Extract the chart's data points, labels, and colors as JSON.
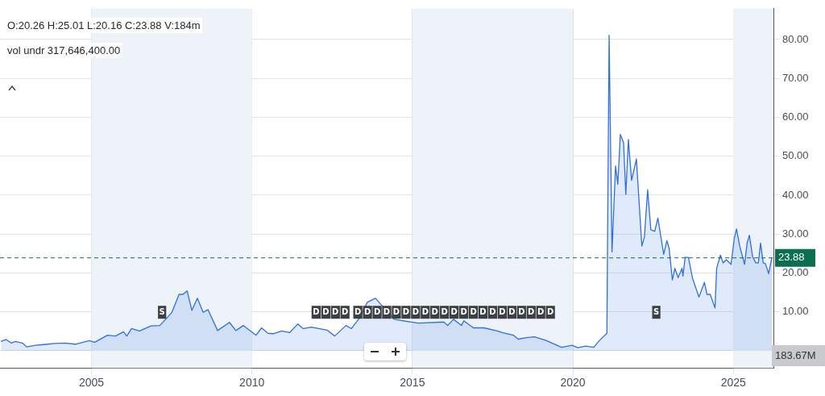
{
  "chart_data": {
    "type": "area",
    "x": [
      2002.18,
      2002.34,
      2002.5,
      2002.63,
      2002.85,
      2002.98,
      2003.25,
      2003.5,
      2003.85,
      2004.18,
      2004.5,
      2004.93,
      2005.1,
      2005.5,
      2005.75,
      2006.0,
      2006.1,
      2006.25,
      2006.5,
      2006.85,
      2007.13,
      2007.25,
      2007.5,
      2007.73,
      2007.85,
      2007.98,
      2008.13,
      2008.3,
      2008.48,
      2008.63,
      2008.93,
      2009.3,
      2009.5,
      2009.73,
      2010.13,
      2010.3,
      2010.5,
      2010.68,
      2010.93,
      2011.18,
      2011.43,
      2011.6,
      2011.85,
      2012.35,
      2012.58,
      2012.93,
      2013.1,
      2013.35,
      2013.6,
      2013.85,
      2014.0,
      2014.43,
      2015.18,
      2015.98,
      2016.1,
      2016.28,
      2016.53,
      2016.6,
      2016.9,
      2017.23,
      2017.65,
      2017.8,
      2018.15,
      2018.3,
      2018.55,
      2018.8,
      2019.15,
      2019.65,
      2019.98,
      2020.15,
      2020.4,
      2020.65,
      2020.8,
      2021.06,
      2021.13,
      2021.22,
      2021.33,
      2021.4,
      2021.48,
      2021.58,
      2021.65,
      2021.73,
      2021.83,
      2021.98,
      2022.15,
      2022.23,
      2022.33,
      2022.43,
      2022.55,
      2022.65,
      2022.83,
      2022.93,
      2023.0,
      2023.1,
      2023.18,
      2023.28,
      2023.4,
      2023.43,
      2023.5,
      2023.6,
      2023.73,
      2023.93,
      2024.1,
      2024.18,
      2024.28,
      2024.43,
      2024.48,
      2024.55,
      2024.6,
      2024.68,
      2024.78,
      2024.93,
      2025.03,
      2025.1,
      2025.2,
      2025.35,
      2025.43,
      2025.5,
      2025.6,
      2025.7,
      2025.78,
      2025.85,
      2025.93,
      2026.0,
      2026.1,
      2026.2
    ],
    "series": [
      {
        "color": "#2f6fe0",
        "values": [
          2.4,
          2.9,
          2.0,
          2.4,
          2.0,
          1.0,
          1.4,
          1.6,
          1.9,
          2.0,
          1.7,
          2.6,
          2.2,
          4.0,
          3.8,
          4.9,
          3.8,
          5.7,
          5.1,
          6.4,
          6.5,
          null,
          9.8,
          14.5,
          14.5,
          15.4,
          10.4,
          13.5,
          9.9,
          10.6,
          5.2,
          7.3,
          5.2,
          6.5,
          4.0,
          5.9,
          4.5,
          4.4,
          5.1,
          4.7,
          6.9,
          5.7,
          6.1,
          5.3,
          3.8,
          6.5,
          5.7,
          8.4,
          12.5,
          13.5,
          12.1,
          8.1,
          7.1,
          7.4,
          6.5,
          8.1,
          6.5,
          7.7,
          5.9,
          5.9,
          5.1,
          4.7,
          4.0,
          3.0,
          3.4,
          3.6,
          2.7,
          0.9,
          1.4,
          0.8,
          1.2,
          0.9,
          2.4,
          4.5,
          81.1,
          25.4,
          47.5,
          42.8,
          55.6,
          53.5,
          40.2,
          54.3,
          43.8,
          49.3,
          26.9,
          29.3,
          41.4,
          31.1,
          30.7,
          34.1,
          24.8,
          28.3,
          26.3,
          18.2,
          21.2,
          18.8,
          21.2,
          19.2,
          24.0,
          24.0,
          18.6,
          13.8,
          17.6,
          14.5,
          14.5,
          11.0,
          21.2,
          23.2,
          24.6,
          22.6,
          23.4,
          22.2,
          28.9,
          31.3,
          26.9,
          22.2,
          27.7,
          29.7,
          24.2,
          22.6,
          22.6,
          27.7,
          22.6,
          22.4,
          19.8,
          23.9
        ]
      }
    ],
    "xlim": [
      2002.15,
      2026.25
    ],
    "xticks": [
      2005,
      2010,
      2015,
      2020,
      2025
    ],
    "ylim": [
      -4.4,
      87.9
    ],
    "yticks": [
      {
        "value": 0,
        "label": null
      },
      {
        "value": 10,
        "label": "10.00"
      },
      {
        "value": 20,
        "label": "20.00"
      },
      {
        "value": 30,
        "label": "30.00"
      },
      {
        "value": 40,
        "label": "40.00"
      },
      {
        "value": 50,
        "label": "50.00"
      },
      {
        "value": 60,
        "label": "60.00"
      },
      {
        "value": 70,
        "label": "70.00"
      },
      {
        "value": 80,
        "label": "80.00"
      }
    ],
    "grid": true,
    "legend": false,
    "ref_lines": [
      {
        "axis": "y",
        "value": 23.88,
        "label": "23.88",
        "color": "#0b6e4f",
        "line_style": "dashed"
      }
    ],
    "bands": [
      {
        "axis": "x",
        "from": 2005,
        "to": 2010,
        "color": "#eef3f9"
      },
      {
        "axis": "x",
        "from": 2015,
        "to": 2020,
        "color": "#eef3f9"
      },
      {
        "axis": "x",
        "from": 2025,
        "to": 2026.25,
        "color": "#eef3f9"
      }
    ],
    "annotations": [
      "O:20.26  H:25.01  L:20.16  C:23.88  V:184m",
      "vol undr  317,646,400.00",
      "183.67M",
      {
        "text": "S",
        "x": 2007.2,
        "y": 9.9
      },
      {
        "text": "S",
        "x": 2022.6,
        "y": 9.9
      },
      {
        "text": "D",
        "x": 2012.0,
        "y": 9.9
      },
      {
        "text": "D",
        "x": 2012.3,
        "y": 9.9
      },
      {
        "text": "D",
        "x": 2012.6,
        "y": 9.9
      },
      {
        "text": "D",
        "x": 2012.9,
        "y": 9.9
      },
      {
        "text": "D",
        "x": 2013.3,
        "y": 9.9
      },
      {
        "text": "D",
        "x": 2013.6,
        "y": 9.9
      },
      {
        "text": "D",
        "x": 2013.9,
        "y": 9.9
      },
      {
        "text": "D",
        "x": 2014.2,
        "y": 9.9
      },
      {
        "text": "D",
        "x": 2014.5,
        "y": 9.9
      },
      {
        "text": "D",
        "x": 2014.8,
        "y": 9.9
      },
      {
        "text": "D",
        "x": 2015.1,
        "y": 9.9
      },
      {
        "text": "D",
        "x": 2015.4,
        "y": 9.9
      },
      {
        "text": "D",
        "x": 2015.7,
        "y": 9.9
      },
      {
        "text": "D",
        "x": 2016.0,
        "y": 9.9
      },
      {
        "text": "D",
        "x": 2016.3,
        "y": 9.9
      },
      {
        "text": "D",
        "x": 2016.6,
        "y": 9.9
      },
      {
        "text": "D",
        "x": 2016.9,
        "y": 9.9
      },
      {
        "text": "D",
        "x": 2017.2,
        "y": 9.9
      },
      {
        "text": "D",
        "x": 2017.5,
        "y": 9.9
      },
      {
        "text": "D",
        "x": 2017.8,
        "y": 9.9
      },
      {
        "text": "D",
        "x": 2018.1,
        "y": 9.9
      },
      {
        "text": "D",
        "x": 2018.4,
        "y": 9.9
      },
      {
        "text": "D",
        "x": 2018.7,
        "y": 9.9
      },
      {
        "text": "D",
        "x": 2019.0,
        "y": 9.9
      },
      {
        "text": "D",
        "x": 2019.3,
        "y": 9.9
      }
    ]
  }
}
